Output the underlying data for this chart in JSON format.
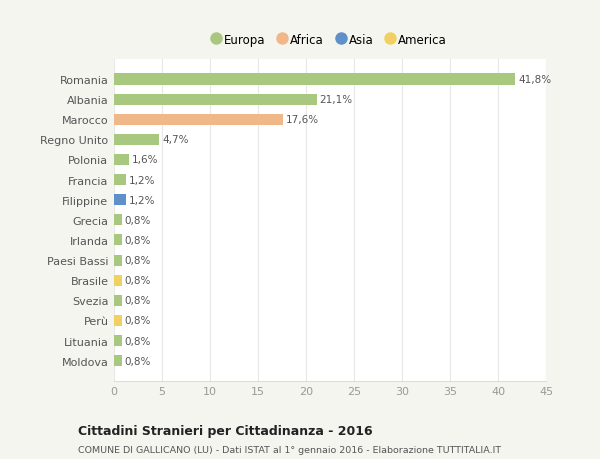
{
  "countries": [
    "Romania",
    "Albania",
    "Marocco",
    "Regno Unito",
    "Polonia",
    "Francia",
    "Filippine",
    "Grecia",
    "Irlanda",
    "Paesi Bassi",
    "Brasile",
    "Svezia",
    "Perù",
    "Lituania",
    "Moldova"
  ],
  "values": [
    41.8,
    21.1,
    17.6,
    4.7,
    1.6,
    1.2,
    1.2,
    0.8,
    0.8,
    0.8,
    0.8,
    0.8,
    0.8,
    0.8,
    0.8
  ],
  "labels": [
    "41,8%",
    "21,1%",
    "17,6%",
    "4,7%",
    "1,6%",
    "1,2%",
    "1,2%",
    "0,8%",
    "0,8%",
    "0,8%",
    "0,8%",
    "0,8%",
    "0,8%",
    "0,8%",
    "0,8%"
  ],
  "continents": [
    "Europa",
    "Europa",
    "Africa",
    "Europa",
    "Europa",
    "Europa",
    "Asia",
    "Europa",
    "Europa",
    "Europa",
    "America",
    "Europa",
    "America",
    "Europa",
    "Europa"
  ],
  "continent_colors": {
    "Europa": "#a8c880",
    "Africa": "#f0b888",
    "Asia": "#6090c8",
    "America": "#f0d060"
  },
  "legend_order": [
    "Europa",
    "Africa",
    "Asia",
    "America"
  ],
  "title": "Cittadini Stranieri per Cittadinanza - 2016",
  "subtitle": "COMUNE DI GALLICANO (LU) - Dati ISTAT al 1° gennaio 2016 - Elaborazione TUTTITALIA.IT",
  "xlim": [
    0,
    45
  ],
  "xticks": [
    0,
    5,
    10,
    15,
    20,
    25,
    30,
    35,
    40,
    45
  ],
  "background_color": "#f5f5f0",
  "plot_bg_color": "#ffffff",
  "grid_color": "#e8e8e8",
  "bar_height": 0.55
}
